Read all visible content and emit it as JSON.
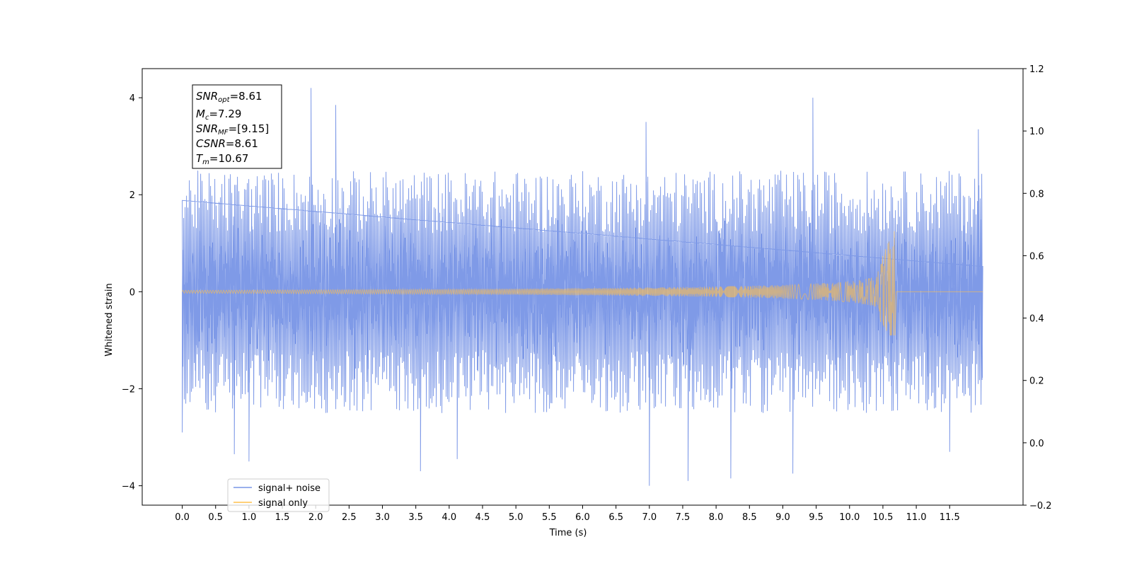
{
  "chart_data": {
    "type": "line",
    "xlabel": "Time (s)",
    "ylabel": "Whitened strain",
    "xlim": [
      -0.6,
      12.6
    ],
    "ylim": [
      -4.4,
      4.6
    ],
    "y2lim": [
      -0.2,
      1.2
    ],
    "x_ticks": [
      0.0,
      0.5,
      1.0,
      1.5,
      2.0,
      2.5,
      3.0,
      3.5,
      4.0,
      4.5,
      5.0,
      5.5,
      6.0,
      6.5,
      7.0,
      7.5,
      8.0,
      8.5,
      9.0,
      9.5,
      10.0,
      10.5,
      11.0,
      11.5
    ],
    "x_tick_labels": [
      "0.0",
      "0.5",
      "1.0",
      "1.5",
      "2.0",
      "2.5",
      "3.0",
      "3.5",
      "4.0",
      "4.5",
      "5.0",
      "5.5",
      "6.0",
      "6.5",
      "7.0",
      "7.5",
      "8.0",
      "8.5",
      "9.0",
      "9.5",
      "10.0",
      "10.5",
      "11.0",
      "11.5"
    ],
    "y_ticks": [
      -4,
      -2,
      0,
      2,
      4
    ],
    "y_tick_labels": [
      "−4",
      "−2",
      "0",
      "2",
      "4"
    ],
    "y2_ticks": [
      -0.2,
      0.0,
      0.2,
      0.4,
      0.6,
      0.8,
      1.0,
      1.2
    ],
    "y2_tick_labels": [
      "−0.2",
      "0.0",
      "0.2",
      "0.4",
      "0.6",
      "0.8",
      "1.0",
      "1.2"
    ],
    "grid": false,
    "legend_position": "bottom-left",
    "series": [
      {
        "name": "signal+ noise",
        "color": "#7895e6",
        "kind": "noise",
        "t_start": 0.0,
        "t_end": 12.0,
        "envelope_typical": 1.9,
        "peaks": [
          {
            "x": 0.0,
            "y": -2.9
          },
          {
            "x": 0.78,
            "y": -3.35
          },
          {
            "x": 1.0,
            "y": -3.5
          },
          {
            "x": 1.93,
            "y": 4.2
          },
          {
            "x": 2.3,
            "y": 3.85
          },
          {
            "x": 3.57,
            "y": -3.7
          },
          {
            "x": 4.12,
            "y": -3.45
          },
          {
            "x": 6.95,
            "y": 3.5
          },
          {
            "x": 7.0,
            "y": -4.0
          },
          {
            "x": 7.58,
            "y": -3.9
          },
          {
            "x": 8.22,
            "y": -3.85
          },
          {
            "x": 9.15,
            "y": -3.75
          },
          {
            "x": 9.45,
            "y": 4.0
          },
          {
            "x": 11.5,
            "y": -3.3
          },
          {
            "x": 11.93,
            "y": 3.35
          }
        ]
      },
      {
        "name": "signal only",
        "color": "#ffc04d",
        "kind": "chirp",
        "t_start": 0.0,
        "t_merger": 10.67,
        "t_end": 12.0,
        "amplitude_start": 0.03,
        "amplitude_peak_upper": 1.25,
        "amplitude_peak_lower": -0.9
      }
    ],
    "annotations": [
      {
        "base": "SNR",
        "sub": "opt",
        "rest": "=8.61"
      },
      {
        "base": "M",
        "sub": "c",
        "rest": "=7.29"
      },
      {
        "base": "SNR",
        "sub": "MF",
        "rest": "=[9.15]"
      },
      {
        "base": "CSNR",
        "sub": "",
        "rest": "=8.61"
      },
      {
        "base": "T",
        "sub": "m",
        "rest": "=10.67"
      }
    ]
  }
}
